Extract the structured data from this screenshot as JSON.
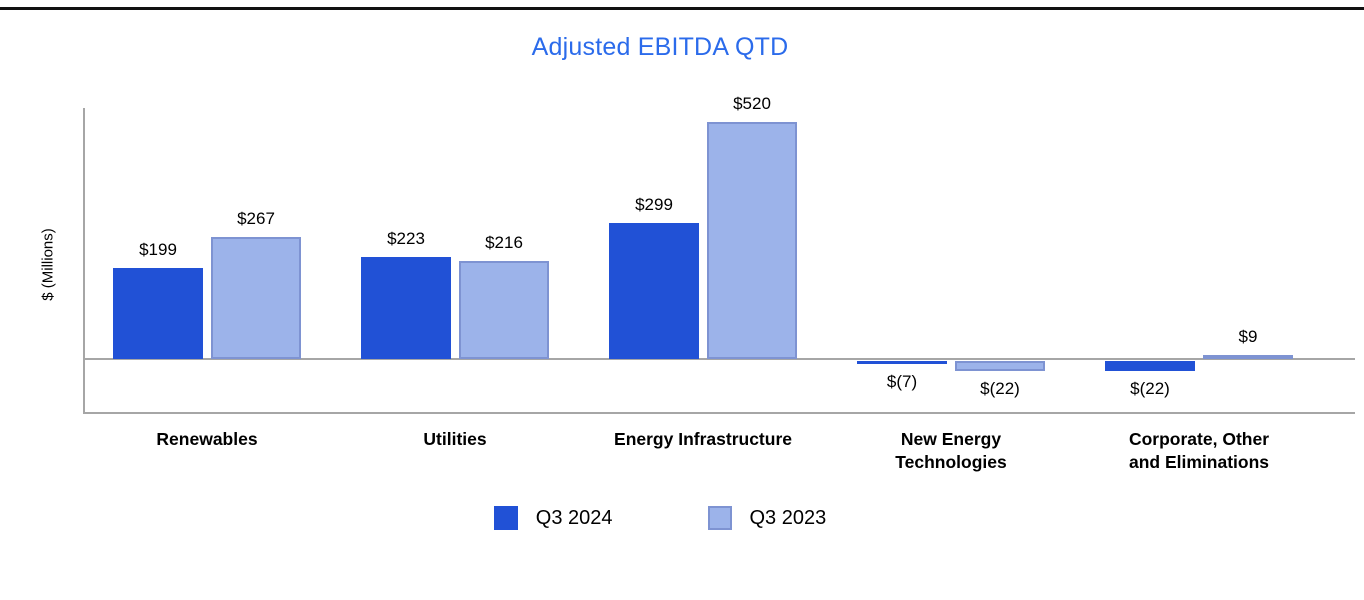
{
  "title": "Adjusted EBITDA QTD",
  "colors": {
    "title": "#2b6beb",
    "series1": "#2151d6",
    "series2": "#9cb3ea",
    "series2_border": "#7e93d2",
    "axis": "#a6a6a6",
    "rule": "#111111"
  },
  "chart_data": {
    "type": "bar",
    "title": "Adjusted EBITDA QTD",
    "ylabel": "$ (Millions)",
    "xlabel": "",
    "grid": "off",
    "legend_position": "bottom",
    "ylim": [
      -60,
      560
    ],
    "categories": [
      "Renewables",
      "Utilities",
      "Energy Infrastructure",
      "New Energy\nTechnologies",
      "Corporate, Other\nand Eliminations"
    ],
    "series": [
      {
        "name": "Q3 2024",
        "color": "#2151d6",
        "values": [
          199,
          223,
          299,
          -7,
          -22
        ],
        "labels": [
          "$199",
          "$223",
          "$299",
          "$(7)",
          "$(22)"
        ]
      },
      {
        "name": "Q3 2023",
        "color": "#9cb3ea",
        "values": [
          267,
          216,
          520,
          -22,
          9
        ],
        "labels": [
          "$267",
          "$216",
          "$520",
          "$(22)",
          "$9"
        ]
      }
    ]
  }
}
